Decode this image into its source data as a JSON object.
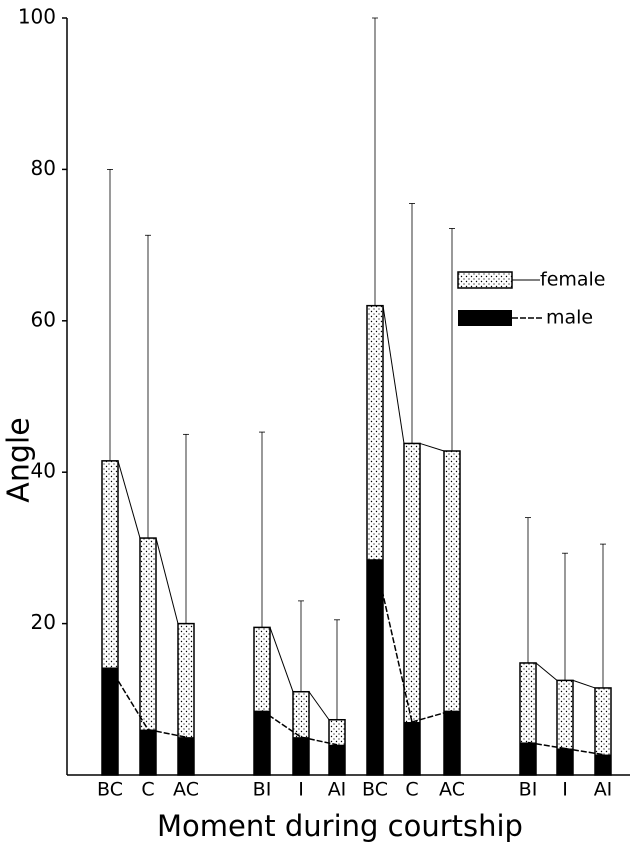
{
  "chart_data": {
    "type": "bar",
    "y_label": "Angle",
    "x_label": "Moment during courtship",
    "categories": [
      "BC",
      "C",
      "AC",
      "BI",
      "I",
      "AI",
      "BC",
      "C",
      "AC",
      "BI",
      "I",
      "AI"
    ],
    "series": [
      {
        "name": "female",
        "color": "#ffffff",
        "values": [
          41.5,
          31.3,
          20,
          19.5,
          11,
          7.3,
          62,
          43.8,
          42.8,
          14.8,
          12.5,
          11.5
        ],
        "errors": [
          38.5,
          40,
          25,
          25.8,
          12,
          13.2,
          38,
          31.7,
          29.4,
          19.2,
          16.8,
          19
        ]
      },
      {
        "name": "male",
        "color": "#000000",
        "values": [
          14.2,
          6,
          5,
          8.5,
          5,
          4,
          28.5,
          7,
          8.5,
          4.3,
          3.5,
          2.7
        ]
      }
    ],
    "ylim": [
      0,
      100
    ],
    "yticks": [
      20,
      40,
      60,
      80,
      100
    ]
  }
}
